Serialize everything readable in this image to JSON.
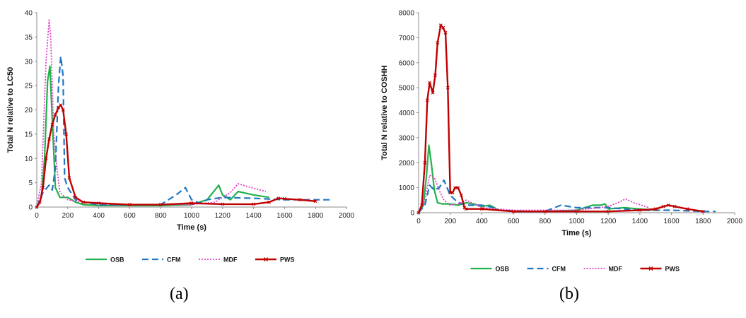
{
  "panels": {
    "a_label": "(a)",
    "b_label": "(b)"
  },
  "colors": {
    "OSB": "#22b14c",
    "CFM": "#1f77c4",
    "MDF": "#e040c8",
    "PWS": "#c00000"
  },
  "chart_data": [
    {
      "type": "line",
      "xlabel": "Time (s)",
      "ylabel": "Total N relative to LC50",
      "xlim": [
        0,
        2000
      ],
      "ylim": [
        0,
        40
      ],
      "xticks": [
        "0",
        "200",
        "400",
        "600",
        "800",
        "1000",
        "1200",
        "1400",
        "1600",
        "1800",
        "2000"
      ],
      "yticks": [
        "0",
        "5",
        "10",
        "15",
        "20",
        "25",
        "30",
        "35",
        "40"
      ],
      "grid": false,
      "legend_position": "bottom",
      "series": [
        {
          "name": "OSB",
          "style": "solid",
          "x": [
            0,
            30,
            50,
            70,
            85,
            100,
            120,
            150,
            200,
            250,
            300,
            400,
            600,
            800,
            1000,
            1100,
            1150,
            1175,
            1200,
            1250,
            1300,
            1400,
            1500
          ],
          "y": [
            0,
            2,
            10,
            26,
            29,
            18,
            4,
            2,
            2,
            1,
            0.5,
            0.3,
            0.3,
            0.3,
            0.5,
            1.5,
            3.5,
            4.5,
            2.5,
            1.5,
            3.2,
            2.5,
            2
          ]
        },
        {
          "name": "CFM",
          "style": "dashed",
          "x": [
            0,
            40,
            80,
            100,
            120,
            140,
            155,
            170,
            180,
            200,
            250,
            300,
            400,
            600,
            800,
            900,
            960,
            1000,
            1050,
            1100,
            1200,
            1400,
            1600,
            1700,
            1800,
            1900
          ],
          "y": [
            0,
            3,
            4.5,
            3.5,
            8,
            25,
            31,
            27,
            6,
            4,
            1.5,
            1,
            0.5,
            0.5,
            0.5,
            2.5,
            4,
            1.5,
            0.8,
            1.5,
            2,
            1.8,
            1.5,
            1.5,
            1.5,
            1.5
          ]
        },
        {
          "name": "MDF",
          "style": "dotted",
          "x": [
            0,
            30,
            60,
            80,
            90,
            110,
            130,
            150,
            200,
            300,
            500,
            800,
            1000,
            1150,
            1250,
            1300,
            1350,
            1480
          ],
          "y": [
            0,
            5,
            30,
            38.5,
            35,
            15,
            8,
            3,
            1.5,
            1,
            0.5,
            0.5,
            0.5,
            1,
            3,
            4.8,
            4.3,
            3.2
          ]
        },
        {
          "name": "PWS",
          "style": "solid-marker",
          "x": [
            0,
            20,
            40,
            60,
            80,
            100,
            120,
            140,
            155,
            170,
            190,
            210,
            250,
            300,
            400,
            600,
            800,
            1000,
            1200,
            1400,
            1500,
            1560,
            1600,
            1700,
            1800
          ],
          "y": [
            0,
            1,
            4,
            10,
            14,
            17,
            19,
            20.5,
            21,
            20,
            15,
            6,
            2,
            1,
            0.8,
            0.5,
            0.5,
            0.8,
            0.6,
            0.6,
            1,
            1.8,
            1.7,
            1.5,
            1.2
          ]
        }
      ]
    },
    {
      "type": "line",
      "xlabel": "Time (s)",
      "ylabel": "Total N relative to COSHH",
      "xlim": [
        0,
        2000
      ],
      "ylim": [
        0,
        8000
      ],
      "xticks": [
        "0",
        "200",
        "400",
        "600",
        "800",
        "1000",
        "1200",
        "1400",
        "1600",
        "1800",
        "2000"
      ],
      "yticks": [
        "0",
        "1000",
        "2000",
        "3000",
        "4000",
        "5000",
        "6000",
        "7000",
        "8000"
      ],
      "grid": false,
      "legend_position": "bottom",
      "series": [
        {
          "name": "OSB",
          "style": "solid",
          "x": [
            0,
            30,
            50,
            65,
            80,
            100,
            120,
            150,
            200,
            250,
            300,
            350,
            400,
            450,
            480,
            500,
            600,
            800,
            1000,
            1100,
            1150,
            1180,
            1200,
            1300,
            1400,
            1500
          ],
          "y": [
            0,
            300,
            1500,
            2700,
            2000,
            900,
            400,
            350,
            350,
            300,
            400,
            350,
            250,
            300,
            200,
            100,
            50,
            50,
            100,
            300,
            300,
            350,
            150,
            200,
            150,
            100
          ]
        },
        {
          "name": "CFM",
          "style": "dashed",
          "x": [
            0,
            40,
            70,
            100,
            130,
            160,
            200,
            250,
            300,
            400,
            480,
            500,
            700,
            800,
            900,
            1000,
            1100,
            1200,
            1400,
            1600,
            1800,
            1880
          ],
          "y": [
            0,
            300,
            1100,
            900,
            1000,
            1300,
            700,
            400,
            300,
            300,
            200,
            100,
            50,
            50,
            300,
            200,
            200,
            200,
            100,
            100,
            50,
            50
          ]
        },
        {
          "name": "MDF",
          "style": "dotted",
          "x": [
            0,
            40,
            70,
            100,
            130,
            160,
            200,
            250,
            300,
            400,
            600,
            800,
            1000,
            1200,
            1260,
            1310,
            1360,
            1460
          ],
          "y": [
            0,
            500,
            1500,
            1400,
            900,
            500,
            300,
            350,
            500,
            200,
            100,
            100,
            100,
            250,
            400,
            550,
            400,
            200
          ]
        },
        {
          "name": "PWS",
          "style": "solid-marker",
          "x": [
            0,
            20,
            40,
            55,
            70,
            90,
            105,
            120,
            140,
            155,
            170,
            185,
            200,
            215,
            230,
            250,
            270,
            290,
            300,
            400,
            600,
            800,
            1000,
            1200,
            1400,
            1500,
            1550,
            1580,
            1620,
            1700,
            1800
          ],
          "y": [
            0,
            300,
            2000,
            4500,
            5200,
            4800,
            5500,
            6800,
            7500,
            7400,
            7200,
            5000,
            800,
            800,
            1000,
            1000,
            700,
            200,
            150,
            150,
            50,
            50,
            50,
            50,
            100,
            150,
            250,
            300,
            250,
            150,
            50
          ]
        }
      ]
    }
  ]
}
